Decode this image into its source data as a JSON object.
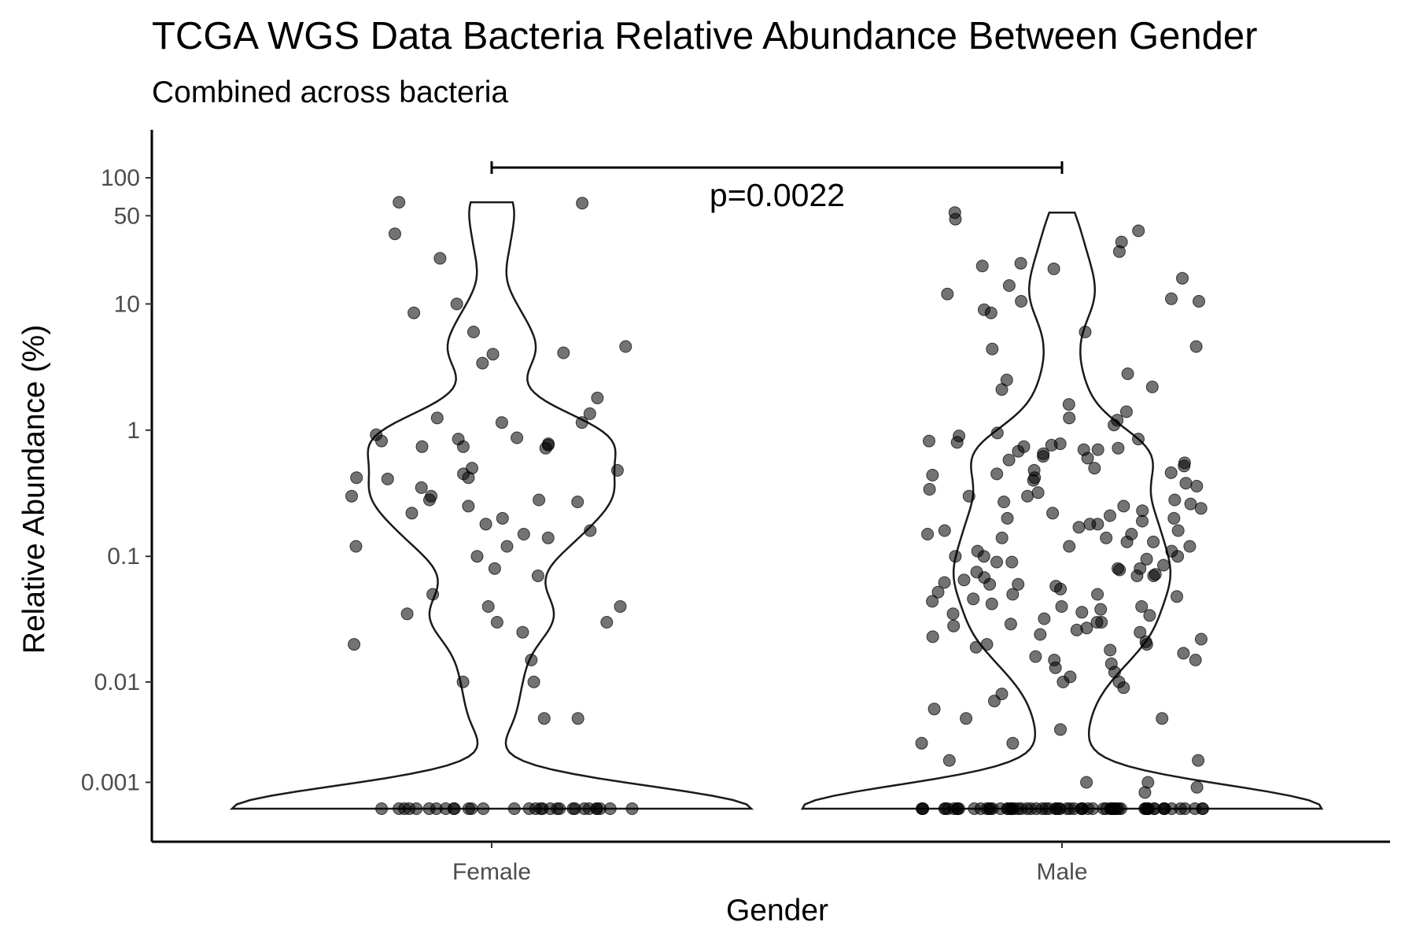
{
  "chart_data": {
    "type": "violin",
    "title": "TCGA WGS Data Bacteria Relative Abundance Between Gender",
    "subtitle": "Combined across bacteria",
    "xlabel": "Gender",
    "ylabel": "Relative Abundance (%)",
    "y_scale": "pseudo-log",
    "y_ticks": [
      0.001,
      0.01,
      0.1,
      1,
      10,
      50,
      100
    ],
    "y_tick_labels": [
      "0.001",
      "0.01",
      "0.1",
      "1",
      "10",
      "50",
      "100"
    ],
    "categories": [
      "Female",
      "Male"
    ],
    "comparison": {
      "groups": [
        "Female",
        "Male"
      ],
      "label": "p=0.0022"
    },
    "grid": false,
    "legend": "none",
    "series": [
      {
        "category": "Female",
        "points": [
          0,
          0,
          0,
          0,
          0,
          0,
          0,
          0,
          0,
          0,
          0,
          0,
          0,
          0,
          0,
          0,
          0,
          0,
          0,
          0,
          0,
          0,
          0,
          0,
          0,
          0,
          0,
          0,
          0,
          0,
          63,
          64,
          36,
          23,
          10,
          4,
          4.6,
          3.4,
          4.1,
          8.5,
          6,
          1.8,
          1.15,
          1.25,
          1.15,
          1.35,
          0.78,
          0.82,
          0.87,
          0.92,
          0.72,
          0.74,
          0.76,
          0.74,
          0.85,
          0.45,
          0.42,
          0.48,
          0.5,
          0.42,
          0.35,
          0.41,
          0.28,
          0.3,
          0.3,
          0.28,
          0.25,
          0.22,
          0.27,
          0.18,
          0.2,
          0.16,
          0.15,
          0.14,
          0.12,
          0.12,
          0.1,
          0.08,
          0.07,
          0.05,
          0.04,
          0.04,
          0.035,
          0.03,
          0.03,
          0.025,
          0.02,
          0.015,
          0.01,
          0.01,
          0.005,
          0.005
        ]
      },
      {
        "category": "Male",
        "points": [
          0,
          0,
          0,
          0,
          0,
          0,
          0,
          0,
          0,
          0,
          0,
          0,
          0,
          0,
          0,
          0,
          0,
          0,
          0,
          0,
          0,
          0,
          0,
          0,
          0,
          0,
          0,
          0,
          0,
          0,
          0,
          0,
          0,
          0,
          0,
          0,
          0,
          0,
          0,
          0,
          0,
          0,
          0,
          0,
          0,
          0,
          0,
          0,
          0,
          0,
          0,
          0,
          0,
          0,
          0,
          0,
          0,
          0,
          0,
          0,
          0,
          0,
          0,
          0,
          0,
          0,
          0,
          0,
          0,
          0,
          53,
          47,
          38,
          31,
          26,
          21,
          20,
          19,
          16,
          14,
          12,
          11,
          10.5,
          10.5,
          9,
          8.5,
          6,
          4.6,
          4.4,
          2.8,
          2.5,
          2.2,
          2.1,
          1.6,
          1.4,
          1.25,
          1.2,
          1.1,
          0.95,
          0.9,
          0.85,
          0.82,
          0.8,
          0.78,
          0.76,
          0.74,
          0.72,
          0.7,
          0.7,
          0.68,
          0.65,
          0.62,
          0.6,
          0.58,
          0.55,
          0.52,
          0.5,
          0.48,
          0.46,
          0.45,
          0.44,
          0.42,
          0.4,
          0.38,
          0.36,
          0.34,
          0.32,
          0.3,
          0.3,
          0.28,
          0.27,
          0.26,
          0.25,
          0.24,
          0.23,
          0.22,
          0.21,
          0.2,
          0.2,
          0.19,
          0.18,
          0.18,
          0.17,
          0.16,
          0.16,
          0.15,
          0.15,
          0.14,
          0.14,
          0.13,
          0.13,
          0.12,
          0.12,
          0.11,
          0.11,
          0.1,
          0.1,
          0.1,
          0.095,
          0.09,
          0.09,
          0.085,
          0.08,
          0.08,
          0.078,
          0.075,
          0.072,
          0.07,
          0.07,
          0.068,
          0.065,
          0.062,
          0.06,
          0.06,
          0.058,
          0.055,
          0.052,
          0.05,
          0.05,
          0.048,
          0.046,
          0.044,
          0.042,
          0.04,
          0.04,
          0.038,
          0.036,
          0.035,
          0.034,
          0.032,
          0.03,
          0.03,
          0.029,
          0.028,
          0.027,
          0.026,
          0.025,
          0.024,
          0.023,
          0.022,
          0.021,
          0.02,
          0.02,
          0.019,
          0.018,
          0.017,
          0.016,
          0.015,
          0.015,
          0.014,
          0.013,
          0.012,
          0.011,
          0.01,
          0.01,
          0.009,
          0.008,
          0.007,
          0.006,
          0.005,
          0.005,
          0.004,
          0.003,
          0.003,
          0.002,
          0.002,
          0.001,
          0.001,
          0.0008,
          0.0006
        ]
      }
    ]
  }
}
